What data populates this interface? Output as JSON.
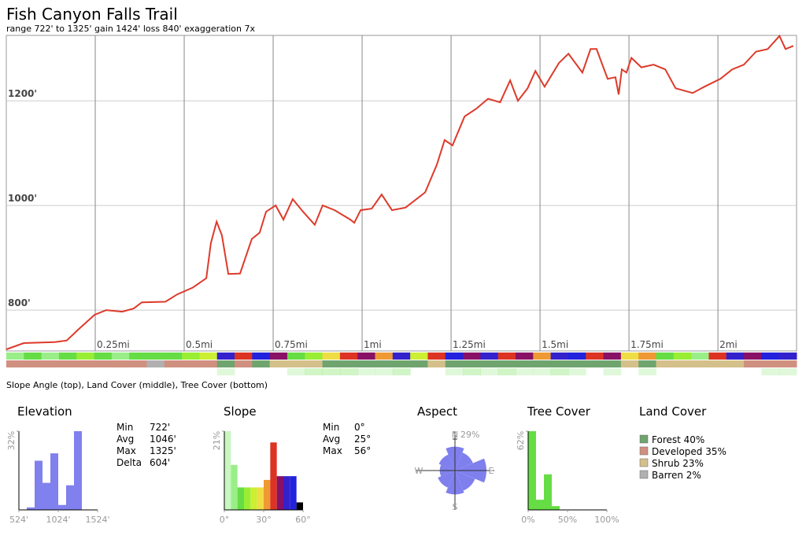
{
  "title": "Fish Canyon Falls Trail",
  "subtitle": "range 722' to 1325'  gain 1424'  loss 840'  exaggeration 7x",
  "strip_caption": "Slope Angle (top), Land Cover (middle), Tree Cover (bottom)",
  "chart_data": [
    {
      "type": "line",
      "color": "#dd3a2a",
      "x": [
        0,
        0.049,
        0.137,
        0.17,
        0.204,
        0.248,
        0.281,
        0.326,
        0.358,
        0.381,
        0.447,
        0.48,
        0.524,
        0.562,
        0.575,
        0.591,
        0.606,
        0.624,
        0.657,
        0.69,
        0.712,
        0.73,
        0.757,
        0.779,
        0.805,
        0.834,
        0.867,
        0.889,
        0.923,
        0.967,
        0.978,
        0.996,
        1.027,
        1.055,
        1.084,
        1.122,
        1.177,
        1.21,
        1.232,
        1.254,
        1.288,
        1.321,
        1.354,
        1.388,
        1.416,
        1.438,
        1.465,
        1.487,
        1.513,
        1.553,
        1.58,
        1.619,
        1.642,
        1.659,
        1.69,
        1.712,
        1.721,
        1.73,
        1.743,
        1.757,
        1.785,
        1.819,
        1.852,
        1.881,
        1.929,
        1.962,
        2.007,
        2.04,
        2.073,
        2.107,
        2.14,
        2.173,
        2.19,
        2.212
      ],
      "values": [
        725,
        737,
        739,
        742,
        764,
        791,
        800,
        797,
        803,
        815,
        816,
        830,
        843,
        861,
        928,
        969,
        943,
        869,
        870,
        936,
        948,
        988,
        1000,
        973,
        1012,
        988,
        963,
        1000,
        991,
        973,
        967,
        991,
        994,
        1021,
        991,
        996,
        1025,
        1078,
        1125,
        1115,
        1170,
        1185,
        1204,
        1197,
        1239,
        1200,
        1224,
        1257,
        1227,
        1272,
        1290,
        1254,
        1299,
        1299,
        1242,
        1245,
        1212,
        1260,
        1254,
        1282,
        1264,
        1269,
        1260,
        1224,
        1215,
        1227,
        1242,
        1260,
        1269,
        1294,
        1299,
        1324,
        1299,
        1305
      ],
      "xlim": [
        0,
        2.221
      ],
      "ylim": [
        722,
        1325
      ],
      "xticks": [
        {
          "value": 0.25,
          "label": "0.25mi"
        },
        {
          "value": 0.5,
          "label": "0.5mi"
        },
        {
          "value": 0.75,
          "label": "0.75mi"
        },
        {
          "value": 1,
          "label": "1mi"
        },
        {
          "value": 1.25,
          "label": "1.25mi"
        },
        {
          "value": 1.5,
          "label": "1.5mi"
        },
        {
          "value": 1.75,
          "label": "1.75mi"
        },
        {
          "value": 2,
          "label": "2mi"
        }
      ],
      "yticks": [
        {
          "value": 800,
          "label": "800'"
        },
        {
          "value": 1000,
          "label": "1000'"
        },
        {
          "value": 1200,
          "label": "1200'"
        }
      ],
      "grid": true
    },
    {
      "type": "histogram",
      "title": "Elevation",
      "color": "#8080ee",
      "bins": [
        624,
        724,
        824,
        924,
        1024,
        1124,
        1224,
        1324
      ],
      "values": [
        1,
        20,
        11,
        23,
        2,
        10,
        32
      ],
      "xlim": [
        524,
        1524
      ],
      "ylim": [
        0,
        32
      ],
      "xticks": [
        {
          "value": 524,
          "label": "524'"
        },
        {
          "value": 1024,
          "label": "1024'"
        },
        {
          "value": 1524,
          "label": "1524'"
        }
      ],
      "yticks": [
        {
          "value": 32,
          "label": "32%"
        }
      ]
    },
    {
      "type": "histogram",
      "title": "Slope",
      "bins": [
        0,
        5,
        10,
        15,
        20,
        25,
        30,
        35,
        40,
        45,
        50,
        55,
        60
      ],
      "values": [
        21,
        12,
        6,
        6,
        6,
        6,
        8,
        18,
        9,
        9,
        9,
        2
      ],
      "colors": [
        "#c8f7c0",
        "#99ee88",
        "#66dd44",
        "#99ee33",
        "#ccee33",
        "#eedd44",
        "#ee9933",
        "#dd3322",
        "#881166",
        "#3322cc",
        "#2222dd",
        "#000000"
      ],
      "xlim": [
        0,
        60
      ],
      "ylim": [
        0,
        21
      ],
      "xticks": [
        {
          "value": 0,
          "label": "0°"
        },
        {
          "value": 30,
          "label": "30°"
        },
        {
          "value": 60,
          "label": "60°"
        }
      ],
      "yticks": [
        {
          "value": 21,
          "label": "21%"
        }
      ]
    },
    {
      "type": "polar",
      "title": "Aspect",
      "color": "#7f7fee",
      "categories": [
        "N",
        null,
        "E",
        null,
        "S",
        null,
        "W",
        null
      ],
      "values": [
        22,
        18,
        29,
        20,
        22,
        17,
        14,
        16
      ],
      "rlim": [
        0,
        29
      ],
      "rticks": [
        {
          "value": 29,
          "label": "29%"
        }
      ]
    },
    {
      "type": "histogram",
      "title": "Tree Cover",
      "color": "#66dd44",
      "bins": [
        0,
        10,
        20,
        30,
        40
      ],
      "values": [
        62,
        8,
        28,
        3
      ],
      "xlim": [
        0,
        100
      ],
      "ylim": [
        0,
        62
      ],
      "xticks": [
        {
          "value": 0,
          "label": "0%"
        },
        {
          "value": 50,
          "label": "50%"
        },
        {
          "value": 100,
          "label": "100%"
        }
      ],
      "yticks": [
        {
          "value": 62,
          "label": "62%"
        }
      ]
    }
  ],
  "elevation_stats": [
    [
      "Min",
      "722'"
    ],
    [
      "Avg",
      "1046'"
    ],
    [
      "Max",
      "1325'"
    ],
    [
      "Delta",
      "604'"
    ]
  ],
  "slope_stats": [
    [
      "Min",
      "0°"
    ],
    [
      "Avg",
      "25°"
    ],
    [
      "Max",
      "56°"
    ]
  ],
  "land_cover": {
    "title": "Land Cover",
    "items": [
      {
        "label": "Forest 40%",
        "color": "#6fa46f"
      },
      {
        "label": "Developed 35%",
        "color": "#d0907f"
      },
      {
        "label": "Shrub 23%",
        "color": "#d4c08a"
      },
      {
        "label": "Barren 2%",
        "color": "#b0b0b0"
      }
    ]
  },
  "strips": {
    "slope": [
      5,
      10,
      8,
      12,
      15,
      10,
      8,
      12,
      10,
      12,
      15,
      20,
      45,
      35,
      50,
      40,
      10,
      15,
      25,
      35,
      40,
      30,
      45,
      20,
      35,
      50,
      40,
      45,
      35,
      40,
      30,
      45,
      50,
      35,
      40,
      25,
      30,
      10,
      15,
      8,
      35,
      45,
      40,
      50,
      45
    ],
    "land_cover": [
      1,
      1,
      1,
      1,
      1,
      1,
      1,
      1,
      3,
      1,
      1,
      1,
      0,
      1,
      0,
      2,
      2,
      2,
      0,
      0,
      0,
      0,
      0,
      0,
      2,
      0,
      0,
      0,
      0,
      0,
      0,
      0,
      0,
      0,
      0,
      2,
      0,
      2,
      2,
      2,
      2,
      2,
      1,
      1,
      1
    ],
    "tree_cover": [
      0,
      0,
      0,
      0,
      0,
      0,
      0,
      0,
      0,
      0,
      0,
      0,
      20,
      0,
      0,
      0,
      20,
      30,
      30,
      30,
      20,
      20,
      30,
      0,
      0,
      20,
      30,
      20,
      30,
      20,
      20,
      30,
      20,
      0,
      20,
      0,
      20,
      0,
      0,
      0,
      0,
      0,
      0,
      20,
      20
    ]
  }
}
